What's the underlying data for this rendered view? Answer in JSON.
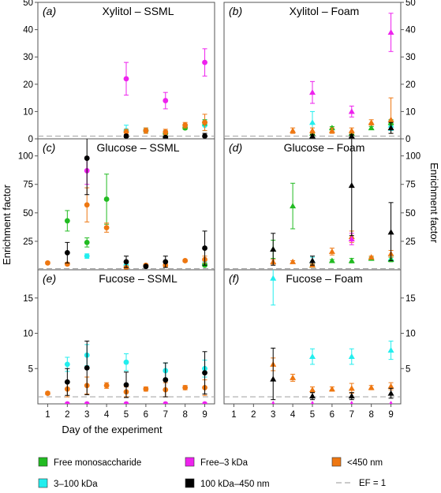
{
  "chart_data": {
    "type": "scatter",
    "xlabel": "Day of the experiment",
    "ylabel": "Enrichment factor",
    "x_ticks": [
      1,
      2,
      3,
      4,
      5,
      6,
      7,
      8,
      9
    ],
    "xlim": [
      0.5,
      9.5
    ],
    "reference_line": {
      "label": "EF = 1",
      "y": 1,
      "style": "dashed",
      "color": "#aaaaaa"
    },
    "series_styles": [
      {
        "key": "free_mono",
        "name": "Free monosaccharide",
        "color": "#22bb22"
      },
      {
        "key": "free_3k",
        "name": "Free–3 kDa",
        "color": "#ee22ee"
      },
      {
        "key": "lt450",
        "name": "<450 nm",
        "color": "#ee7711"
      },
      {
        "key": "k3_100",
        "name": "3–100 kDa",
        "color": "#22eeee"
      },
      {
        "key": "k100_450",
        "name": "100 kDa–450 nm",
        "color": "#000000"
      }
    ],
    "panels": [
      {
        "id": "a",
        "label": "(a)",
        "title": "Xylitol – SSML",
        "marker": "circle",
        "ylim": [
          0,
          50
        ],
        "yticks": [
          0,
          10,
          20,
          30,
          40,
          50
        ],
        "yaxis_side": "left",
        "series": {
          "free_3k": [
            [
              5,
              22,
              16,
              28
            ],
            [
              7,
              14,
              11,
              17
            ],
            [
              9,
              28,
              23,
              33
            ]
          ],
          "k3_100": [
            [
              5,
              3,
              1,
              5
            ],
            [
              6,
              3,
              2,
              4
            ],
            [
              7,
              2,
              1,
              3
            ],
            [
              9,
              5,
              3,
              7
            ]
          ],
          "lt450": [
            [
              5,
              2.5,
              1.5,
              3.5
            ],
            [
              6,
              3,
              2,
              4
            ],
            [
              7,
              2.5,
              1.5,
              3.5
            ],
            [
              8,
              5,
              4,
              6
            ],
            [
              9,
              6,
              3,
              9
            ]
          ],
          "free_mono": [
            [
              6,
              3,
              2.5,
              3.5
            ],
            [
              7,
              2,
              1.5,
              2.5
            ],
            [
              8,
              4,
              3.5,
              4.5
            ],
            [
              9,
              6,
              5,
              7
            ]
          ],
          "k100_450": [
            [
              5,
              1,
              0.5,
              1.5
            ],
            [
              7,
              0.5,
              0,
              1
            ],
            [
              9,
              1,
              0,
              2
            ]
          ]
        }
      },
      {
        "id": "b",
        "label": "(b)",
        "title": "Xylitol – Foam",
        "marker": "triangle",
        "ylim": [
          0,
          50
        ],
        "yticks": [
          0,
          10,
          20,
          30,
          40,
          50
        ],
        "yaxis_side": "right",
        "series": {
          "free_3k": [
            [
              5,
              17,
              13,
              21
            ],
            [
              7,
              10,
              8,
              12
            ],
            [
              9,
              39,
              32,
              46
            ]
          ],
          "k3_100": [
            [
              5,
              6,
              2,
              10
            ],
            [
              9,
              5,
              3,
              7
            ]
          ],
          "lt450": [
            [
              4,
              3,
              2,
              4
            ],
            [
              5,
              3,
              2,
              4
            ],
            [
              6,
              3,
              2,
              4
            ],
            [
              7,
              3,
              2,
              4
            ],
            [
              8,
              6,
              5,
              7
            ],
            [
              9,
              7,
              2,
              15
            ]
          ],
          "free_mono": [
            [
              5,
              2,
              1.5,
              2.5
            ],
            [
              6,
              4,
              3.5,
              4.5
            ],
            [
              7,
              2,
              1.5,
              2.5
            ],
            [
              8,
              4,
              3.5,
              4.5
            ],
            [
              9,
              6,
              5,
              7
            ]
          ],
          "k100_450": [
            [
              5,
              1,
              0.5,
              1.5
            ],
            [
              7,
              1,
              0.5,
              1.5
            ],
            [
              9,
              4,
              2,
              6
            ]
          ]
        }
      },
      {
        "id": "c",
        "label": "(c)",
        "title": "Glucose – SSML",
        "marker": "circle",
        "ylim": [
          0,
          115
        ],
        "yticks": [
          25,
          50,
          75,
          100
        ],
        "yaxis_side": "left",
        "series": {
          "free_mono": [
            [
              2,
              43,
              34,
              52
            ],
            [
              3,
              24,
              20,
              28
            ],
            [
              4,
              62,
              40,
              84
            ],
            [
              9,
              4,
              3,
              5
            ]
          ],
          "free_3k": [
            [
              3,
              87,
              75,
              99
            ]
          ],
          "lt450": [
            [
              1,
              6,
              5,
              7
            ],
            [
              2,
              5,
              4,
              6
            ],
            [
              3,
              57,
              42,
              72
            ],
            [
              4,
              37,
              33,
              41
            ],
            [
              5,
              2,
              1.5,
              2.5
            ],
            [
              6,
              4,
              3,
              5
            ],
            [
              7,
              4,
              3,
              5
            ],
            [
              8,
              8,
              7,
              9
            ],
            [
              9,
              9,
              6,
              12
            ]
          ],
          "k3_100": [
            [
              3,
              12,
              10,
              14
            ],
            [
              5,
              4,
              3,
              5
            ],
            [
              9,
              5,
              3,
              7
            ]
          ],
          "k100_450": [
            [
              2,
              15,
              6,
              24
            ],
            [
              3,
              98,
              66,
              130
            ],
            [
              5,
              7,
              2,
              12
            ],
            [
              6,
              3,
              2,
              4
            ],
            [
              7,
              7,
              2,
              12
            ],
            [
              9,
              19,
              4,
              34
            ]
          ]
        }
      },
      {
        "id": "d",
        "label": "(d)",
        "title": "Glucose – Foam",
        "marker": "triangle",
        "ylim": [
          0,
          115
        ],
        "yticks": [
          25,
          50,
          75,
          100
        ],
        "yaxis_side": "right",
        "series": {
          "free_mono": [
            [
              3,
              18,
              10,
              26
            ],
            [
              4,
              56,
              36,
              76
            ],
            [
              5,
              4,
              3,
              5
            ],
            [
              6,
              8,
              7,
              9
            ],
            [
              7,
              8,
              6,
              10
            ],
            [
              8,
              10,
              9,
              11
            ],
            [
              9,
              9,
              7,
              11
            ]
          ],
          "free_3k": [
            [
              7,
              27,
              22,
              32
            ]
          ],
          "lt450": [
            [
              3,
              7,
              5,
              9
            ],
            [
              4,
              7,
              6,
              8
            ],
            [
              5,
              4,
              3,
              5
            ],
            [
              6,
              16,
              13,
              19
            ],
            [
              7,
              29,
              24,
              34
            ],
            [
              8,
              11,
              10,
              12
            ],
            [
              9,
              14,
              11,
              17
            ]
          ],
          "k3_100": [
            [
              5,
              8,
              5,
              11
            ],
            [
              9,
              10,
              8,
              12
            ]
          ],
          "k100_450": [
            [
              3,
              18,
              4,
              32
            ],
            [
              5,
              8,
              4,
              12
            ],
            [
              7,
              74,
              30,
              118
            ],
            [
              9,
              33,
              8,
              59
            ]
          ]
        }
      },
      {
        "id": "e",
        "label": "(e)",
        "title": "Fucose – SSML",
        "marker": "circle",
        "ylim": [
          0,
          19
        ],
        "yticks": [
          5,
          10,
          15
        ],
        "yaxis_side": "left",
        "series": {
          "free_3k": [
            [
              2,
              0,
              0,
              0
            ],
            [
              3,
              0,
              0,
              0
            ],
            [
              5,
              0,
              0,
              0
            ],
            [
              7,
              0,
              0,
              0
            ],
            [
              9,
              0,
              0,
              0
            ]
          ],
          "k3_100": [
            [
              2,
              5.6,
              4.6,
              6.6
            ],
            [
              3,
              6.9,
              5.4,
              8.4
            ],
            [
              5,
              5.9,
              4.7,
              7.1
            ],
            [
              7,
              4.7,
              3.6,
              5.8
            ],
            [
              9,
              5,
              3.8,
              6.2
            ]
          ],
          "lt450": [
            [
              1,
              1.5,
              1.3,
              1.7
            ],
            [
              2,
              2.1,
              1,
              3.2
            ],
            [
              3,
              2.6,
              1.4,
              3.8
            ],
            [
              4,
              2.6,
              2.2,
              3
            ],
            [
              5,
              1.7,
              1,
              2.4
            ],
            [
              6,
              2.1,
              1.8,
              2.4
            ],
            [
              7,
              2,
              1,
              3
            ],
            [
              8,
              2.3,
              2,
              2.6
            ],
            [
              9,
              2.3,
              1.2,
              3.4
            ]
          ],
          "k100_450": [
            [
              2,
              3.1,
              1.2,
              5
            ],
            [
              3,
              5.1,
              1.3,
              8.9
            ],
            [
              5,
              2.7,
              0.9,
              4.5
            ],
            [
              7,
              3.4,
              1,
              5.8
            ],
            [
              9,
              4.4,
              1.4,
              7.4
            ]
          ]
        }
      },
      {
        "id": "f",
        "label": "(f)",
        "title": "Fucose – Foam",
        "marker": "triangle",
        "ylim": [
          0,
          19
        ],
        "yticks": [
          5,
          10,
          15
        ],
        "yaxis_side": "right",
        "series": {
          "k3_100": [
            [
              3,
              17.8,
              14,
              21.6
            ],
            [
              5,
              6.7,
              5.6,
              7.8
            ],
            [
              7,
              6.7,
              5.6,
              7.8
            ],
            [
              9,
              7.6,
              6.3,
              8.9
            ]
          ],
          "lt450": [
            [
              3,
              5.6,
              4.7,
              6.5
            ],
            [
              4,
              3.7,
              3.2,
              4.2
            ],
            [
              5,
              2,
              1.6,
              2.4
            ],
            [
              6,
              2.1,
              1.8,
              2.4
            ],
            [
              7,
              2.2,
              1.5,
              2.9
            ],
            [
              8,
              2.3,
              2,
              2.6
            ],
            [
              9,
              2.5,
              2,
              3
            ]
          ],
          "k100_450": [
            [
              3,
              3.5,
              0.6,
              7.9
            ],
            [
              5,
              1.1,
              0.6,
              1.6
            ],
            [
              7,
              1.1,
              0.6,
              1.6
            ],
            [
              9,
              1.5,
              0.8,
              2.2
            ]
          ],
          "free_3k": [
            [
              3,
              0,
              0,
              0
            ],
            [
              5,
              0,
              0,
              0
            ],
            [
              7,
              0,
              0,
              0
            ],
            [
              9,
              0,
              0,
              0
            ]
          ]
        }
      }
    ]
  }
}
